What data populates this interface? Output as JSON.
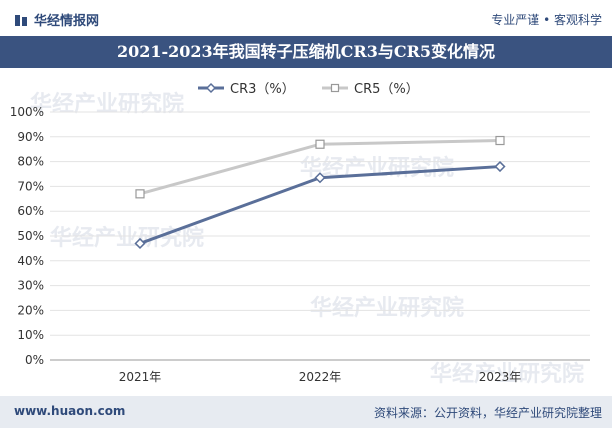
{
  "header": {
    "brand": "华经情报网",
    "tagline": "专业严谨 • 客观科学"
  },
  "footer": {
    "url": "www.huaon.com",
    "source": "资料来源：公开资料，华经产业研究院整理"
  },
  "watermark": {
    "text": "华经产业研究院",
    "url_text": "www.huaon.com"
  },
  "colors": {
    "title_bg": "#3a5380",
    "cr3": "#5a6f99",
    "cr5": "#c8c8c8"
  },
  "chart_data": {
    "type": "line",
    "title": "2021-2023年我国转子压缩机CR3与CR5变化情况",
    "categories": [
      "2021年",
      "2022年",
      "2023年"
    ],
    "series": [
      {
        "name": "CR3（%）",
        "values": [
          47,
          73.5,
          78
        ],
        "marker": "diamond"
      },
      {
        "name": "CR5（%）",
        "values": [
          67,
          87,
          88.5
        ],
        "marker": "square"
      }
    ],
    "yticks": [
      "0%",
      "10%",
      "20%",
      "30%",
      "40%",
      "50%",
      "60%",
      "70%",
      "80%",
      "90%",
      "100%"
    ],
    "ylim": [
      0,
      100
    ],
    "legend": "top-center"
  }
}
